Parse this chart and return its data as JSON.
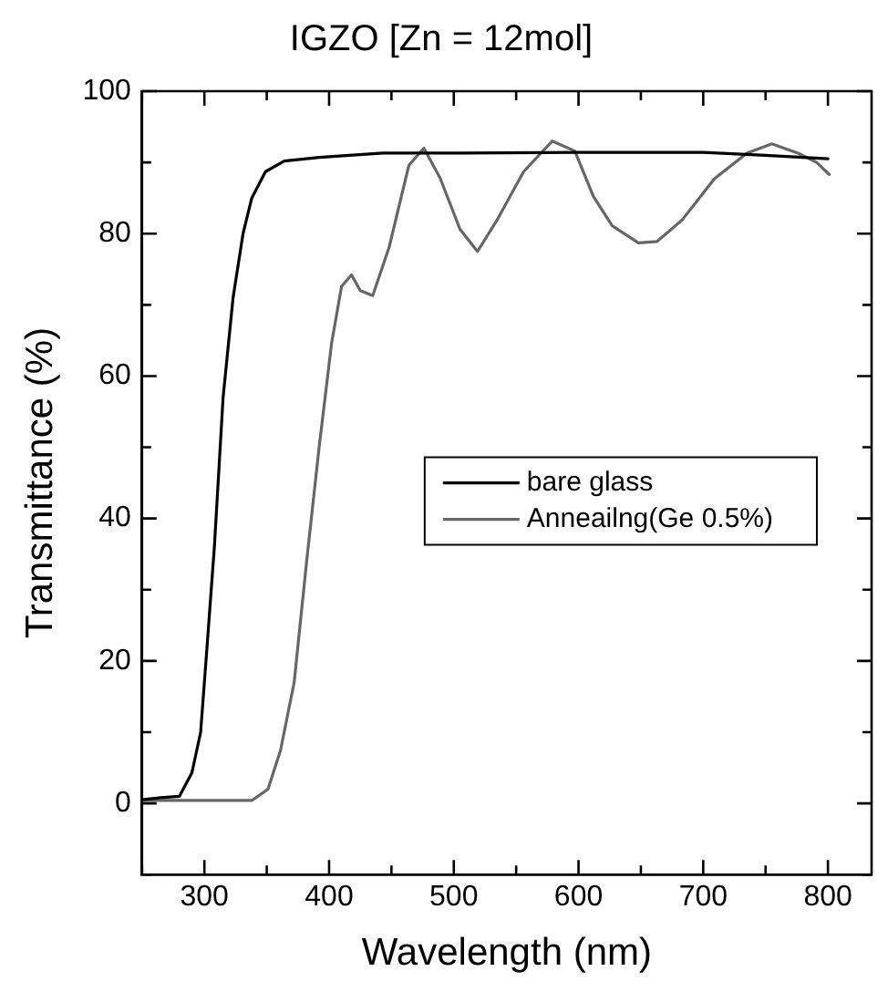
{
  "chart_data": {
    "type": "line",
    "title": "IGZO [Zn = 12mol]",
    "xlabel": "Wavelength (nm)",
    "ylabel": "Transmittance (%)",
    "xlim": [
      250,
      835
    ],
    "xticks": [
      {
        "value": 250,
        "label": null
      },
      300,
      {
        "value": 350,
        "label": null
      },
      400,
      {
        "value": 450,
        "label": null
      },
      500,
      {
        "value": 550,
        "label": null
      },
      600,
      {
        "value": 650,
        "label": null
      },
      700,
      {
        "value": 750,
        "label": null
      },
      800
    ],
    "ylim": [
      -10,
      100
    ],
    "yticks": [
      {
        "value": -10,
        "label": null
      },
      0,
      {
        "value": 10,
        "label": null
      },
      20,
      {
        "value": 30,
        "label": null
      },
      40,
      {
        "value": 50,
        "label": null
      },
      60,
      {
        "value": 70,
        "label": null
      },
      80,
      {
        "value": 90,
        "label": null
      },
      100
    ],
    "grid": false,
    "legend": "right",
    "marker": "none",
    "line_style": "solid",
    "series": [
      {
        "name": "bare glass",
        "color": "#000000",
        "x": [
          250,
          265,
          280,
          290,
          297,
          302,
          308,
          315,
          323,
          331,
          338,
          349,
          364,
          392,
          443,
          500,
          600,
          700,
          750,
          800
        ],
        "values": [
          0.5,
          0.8,
          1,
          4.3,
          10,
          21.7,
          36,
          57,
          71,
          80,
          85,
          88.7,
          90.2,
          90.7,
          91.3,
          91.3,
          91.4,
          91.4,
          91,
          90.5
        ]
      },
      {
        "name": "Anneailng(Ge 0.5%)",
        "color": "#666666",
        "x": [
          250,
          300,
          338,
          351,
          361,
          372,
          382,
          392,
          402,
          410,
          418,
          425,
          435,
          448,
          464,
          476,
          489,
          505,
          519,
          535,
          556,
          579,
          597,
          612,
          627,
          648,
          663,
          683,
          709,
          735,
          755,
          776,
          791,
          801
        ],
        "values": [
          0.4,
          0.4,
          0.4,
          2,
          7.4,
          17,
          34,
          50,
          64.6,
          72.6,
          74.2,
          72,
          71.3,
          78,
          89.6,
          92,
          87.8,
          80.6,
          77.5,
          82,
          88.7,
          93,
          91.6,
          85.2,
          81.1,
          78.7,
          78.9,
          81.9,
          87.7,
          91.3,
          92.6,
          91.3,
          90,
          88.3
        ]
      }
    ]
  }
}
